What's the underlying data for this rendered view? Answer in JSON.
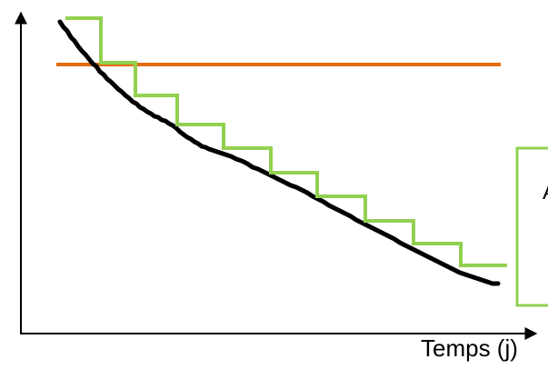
{
  "x_axis": {
    "label": "Temps (j)"
  },
  "callout": {
    "text": "A"
  },
  "colors": {
    "axes": "#000000",
    "decay_curve": "#000000",
    "threshold_line": "#E36C0A",
    "step_curve": "#92D050",
    "callout_border": "#92D050"
  }
}
